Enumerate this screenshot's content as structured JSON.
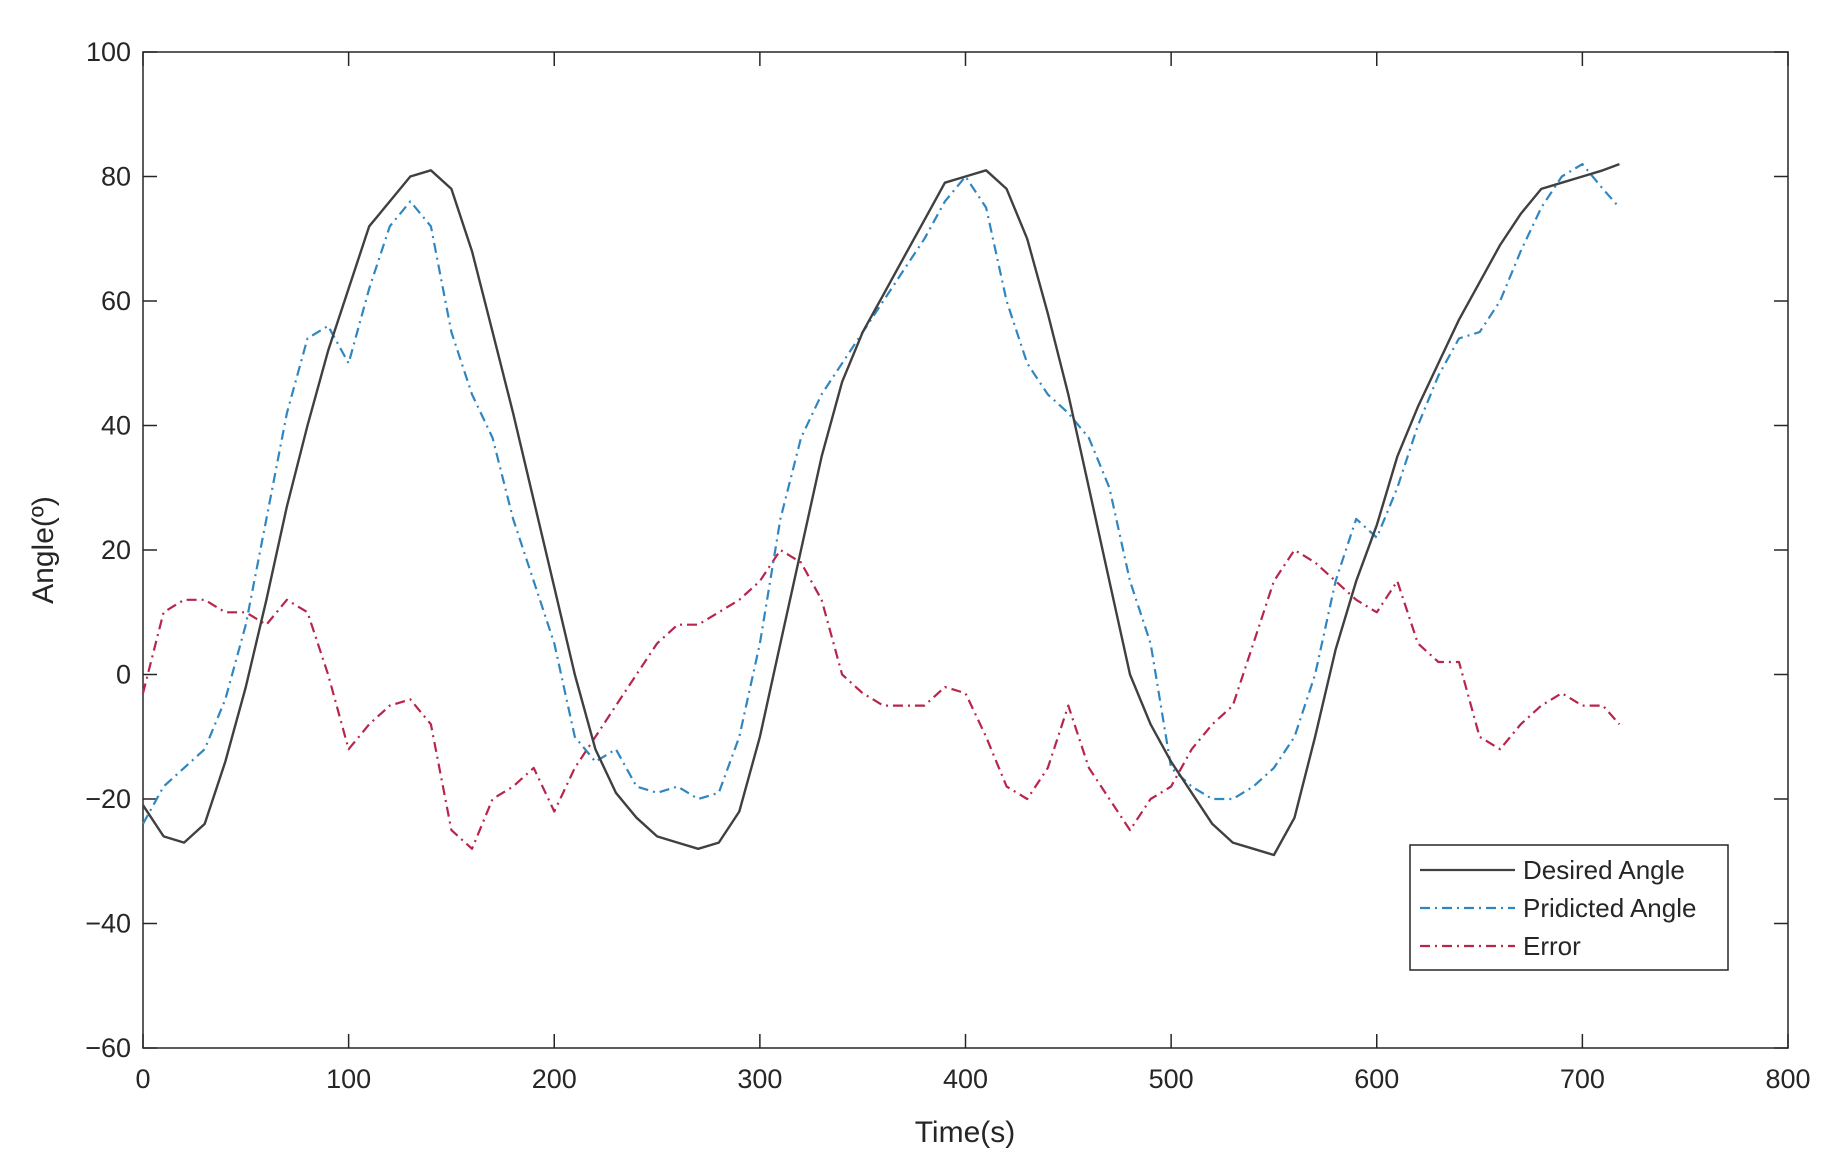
{
  "chart_data": {
    "type": "line",
    "title": "",
    "xlabel": "Time(s)",
    "ylabel": "Angle(º)",
    "xlim": [
      0,
      800
    ],
    "ylim": [
      -60,
      100
    ],
    "xticks": [
      0,
      100,
      200,
      300,
      400,
      500,
      600,
      700,
      800
    ],
    "yticks": [
      -60,
      -40,
      -20,
      0,
      20,
      40,
      60,
      80,
      100
    ],
    "grid": false,
    "legend_position": "bottom-right",
    "series": [
      {
        "name": "Desired Angle",
        "color": "#404040",
        "style": "solid",
        "x": [
          0,
          10,
          20,
          30,
          40,
          50,
          60,
          70,
          80,
          90,
          100,
          110,
          120,
          130,
          140,
          150,
          160,
          170,
          180,
          190,
          200,
          210,
          220,
          230,
          240,
          250,
          260,
          270,
          280,
          290,
          300,
          310,
          320,
          330,
          340,
          350,
          360,
          370,
          380,
          390,
          400,
          410,
          420,
          430,
          440,
          450,
          460,
          470,
          480,
          490,
          500,
          510,
          520,
          530,
          540,
          550,
          560,
          570,
          580,
          590,
          600,
          610,
          620,
          630,
          640,
          650,
          660,
          670,
          680,
          690,
          700,
          710,
          718
        ],
        "values": [
          -21,
          -26,
          -27,
          -24,
          -14,
          -2,
          12,
          27,
          40,
          52,
          62,
          72,
          76,
          80,
          81,
          78,
          68,
          55,
          42,
          28,
          14,
          0,
          -12,
          -19,
          -23,
          -26,
          -27,
          -28,
          -27,
          -22,
          -10,
          5,
          20,
          35,
          47,
          55,
          61,
          67,
          73,
          79,
          80,
          81,
          78,
          70,
          58,
          45,
          30,
          15,
          0,
          -8,
          -14,
          -19,
          -24,
          -27,
          -28,
          -29,
          -23,
          -10,
          4,
          15,
          24,
          35,
          43,
          50,
          57,
          63,
          69,
          74,
          78,
          79,
          80,
          81,
          82
        ]
      },
      {
        "name": "Pridicted Angle",
        "color": "#2f86c0",
        "style": "dash-dot",
        "x": [
          0,
          10,
          20,
          30,
          40,
          50,
          60,
          70,
          80,
          90,
          100,
          110,
          120,
          130,
          140,
          150,
          160,
          170,
          180,
          190,
          200,
          210,
          220,
          230,
          240,
          250,
          260,
          270,
          280,
          290,
          300,
          310,
          320,
          330,
          340,
          350,
          360,
          370,
          380,
          390,
          400,
          410,
          420,
          430,
          440,
          450,
          460,
          470,
          480,
          490,
          500,
          510,
          520,
          530,
          540,
          550,
          560,
          570,
          580,
          590,
          600,
          610,
          620,
          630,
          640,
          650,
          660,
          670,
          680,
          690,
          700,
          710,
          718
        ],
        "values": [
          -24,
          -18,
          -15,
          -12,
          -4,
          8,
          25,
          42,
          54,
          56,
          50,
          62,
          72,
          76,
          72,
          55,
          45,
          38,
          25,
          15,
          5,
          -10,
          -14,
          -12,
          -18,
          -19,
          -18,
          -20,
          -19,
          -10,
          5,
          25,
          38,
          45,
          50,
          55,
          60,
          65,
          70,
          76,
          80,
          75,
          60,
          50,
          45,
          42,
          38,
          30,
          15,
          5,
          -15,
          -18,
          -20,
          -20,
          -18,
          -15,
          -10,
          0,
          15,
          25,
          22,
          30,
          40,
          48,
          54,
          55,
          60,
          68,
          75,
          80,
          82,
          78,
          75
        ]
      },
      {
        "name": "Error",
        "color": "#b7254a",
        "style": "dash-dot",
        "x": [
          0,
          10,
          20,
          30,
          40,
          50,
          60,
          70,
          80,
          90,
          100,
          110,
          120,
          130,
          140,
          150,
          160,
          170,
          180,
          190,
          200,
          210,
          220,
          230,
          240,
          250,
          260,
          270,
          280,
          290,
          300,
          310,
          320,
          330,
          340,
          350,
          360,
          370,
          380,
          390,
          400,
          410,
          420,
          430,
          440,
          450,
          460,
          470,
          480,
          490,
          500,
          510,
          520,
          530,
          540,
          550,
          560,
          570,
          580,
          590,
          600,
          610,
          620,
          630,
          640,
          650,
          660,
          670,
          680,
          690,
          700,
          710,
          718
        ],
        "values": [
          -3,
          10,
          12,
          12,
          10,
          10,
          8,
          12,
          10,
          0,
          -12,
          -8,
          -5,
          -4,
          -8,
          -25,
          -28,
          -20,
          -18,
          -15,
          -22,
          -15,
          -10,
          -5,
          0,
          5,
          8,
          8,
          10,
          12,
          15,
          20,
          18,
          12,
          0,
          -3,
          -5,
          -5,
          -5,
          -2,
          -3,
          -10,
          -18,
          -20,
          -15,
          -5,
          -15,
          -20,
          -25,
          -20,
          -18,
          -12,
          -8,
          -5,
          5,
          15,
          20,
          18,
          15,
          12,
          10,
          15,
          5,
          2,
          2,
          -10,
          -12,
          -8,
          -5,
          -3,
          -5,
          -5,
          -8
        ]
      }
    ]
  }
}
